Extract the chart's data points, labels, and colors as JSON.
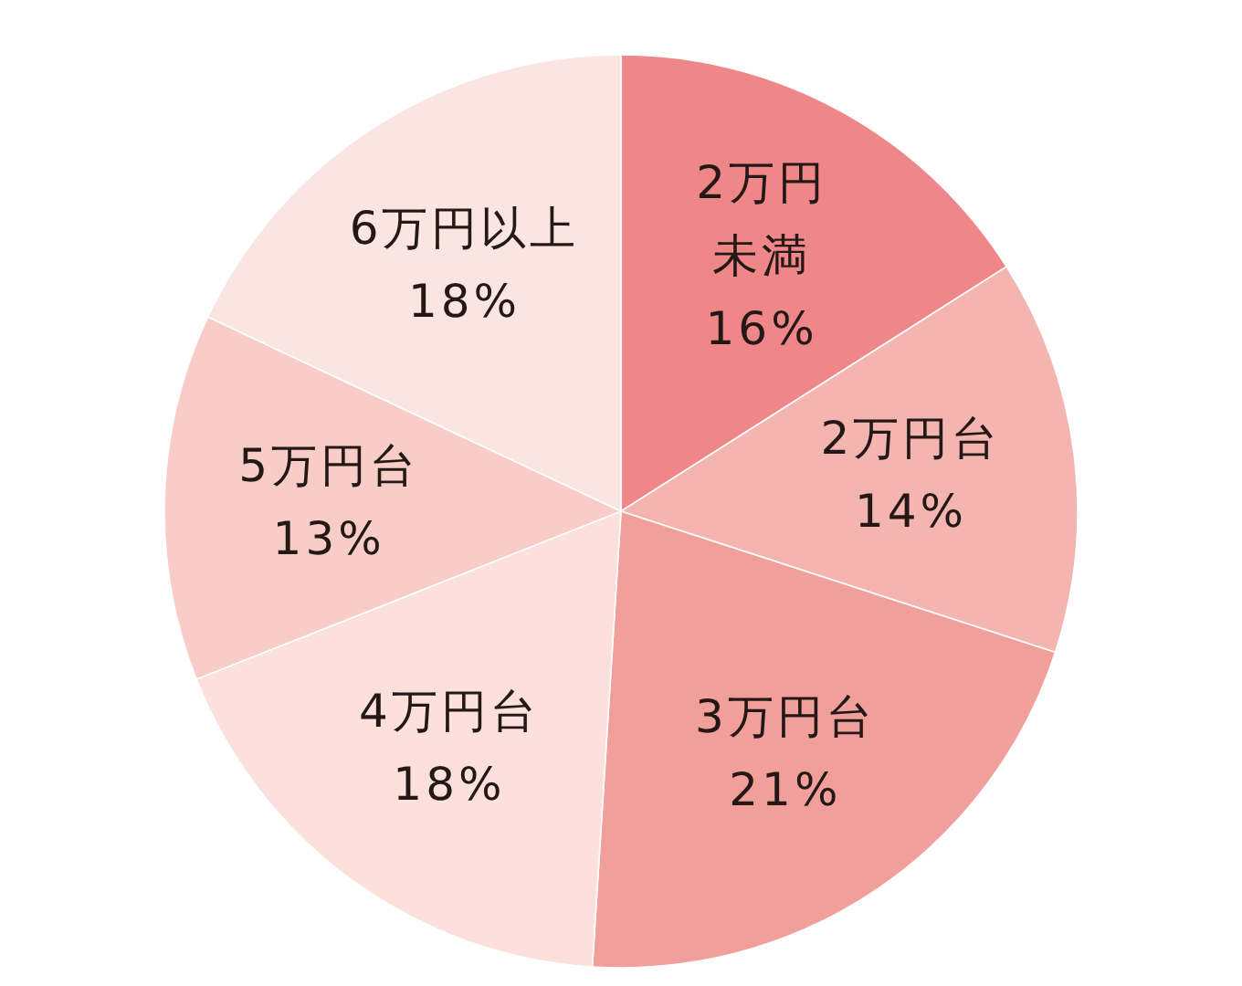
{
  "chart_data": {
    "type": "pie",
    "categories": [
      "2万円未満",
      "2万円台",
      "3万円台",
      "4万円台",
      "5万円台",
      "6万円以上"
    ],
    "values": [
      16,
      14,
      21,
      18,
      13,
      18
    ],
    "value_labels": [
      "16%",
      "14%",
      "21%",
      "18%",
      "13%",
      "18%"
    ],
    "colors": [
      "#ef8687",
      "#f4b5b1",
      "#f19f9b",
      "#fbe0dc",
      "#f8ccc7",
      "#fbe5e3"
    ]
  }
}
